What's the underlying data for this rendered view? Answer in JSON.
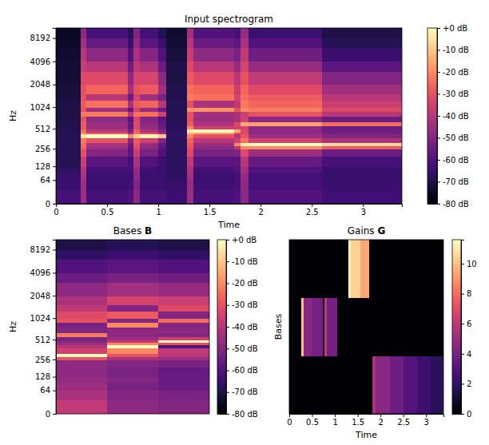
{
  "chart_data": [
    {
      "type": "heatmap",
      "title": "Input spectrogram",
      "x_label": "Time",
      "y_label": "Hz",
      "log": "y",
      "color": "magma",
      "xlim": [
        0,
        3.38
      ],
      "xticks": [
        0,
        0.5,
        1,
        1.5,
        2,
        2.5,
        3
      ],
      "ylim": [
        0,
        11025
      ],
      "yticks": [
        0,
        64,
        128,
        256,
        512,
        1024,
        2048,
        4096,
        8192
      ],
      "x_edges": [
        0,
        0.24,
        0.3,
        0.7,
        0.76,
        0.82,
        1.0,
        1.08,
        1.28,
        1.34,
        1.74,
        1.8,
        1.88,
        2.6,
        3.38
      ],
      "y_edges": [
        0,
        32,
        64,
        96,
        128,
        192,
        256,
        288,
        320,
        384,
        432,
        464,
        512,
        560,
        640,
        768,
        896,
        1024,
        1280,
        1536,
        2048,
        3072,
        4096,
        6144,
        8192,
        11025
      ],
      "cells": [
        [
          -62,
          -45,
          -62,
          -60,
          -48,
          -62,
          -62,
          -64,
          -45,
          -62,
          -60,
          -48,
          -60,
          -63
        ],
        [
          -64,
          -45,
          -64,
          -62,
          -50,
          -64,
          -64,
          -65,
          -46,
          -63,
          -62,
          -48,
          -62,
          -64
        ],
        [
          -65,
          -42,
          -64,
          -63,
          -48,
          -64,
          -65,
          -66,
          -44,
          -64,
          -62,
          -46,
          -62,
          -65
        ],
        [
          -66,
          -40,
          -62,
          -62,
          -46,
          -63,
          -65,
          -66,
          -42,
          -62,
          -60,
          -44,
          -60,
          -64
        ],
        [
          -68,
          -36,
          -58,
          -62,
          -42,
          -60,
          -64,
          -67,
          -38,
          -58,
          -58,
          -40,
          -56,
          -62
        ],
        [
          -68,
          -30,
          -50,
          -58,
          -36,
          -52,
          -60,
          -67,
          -32,
          -52,
          -50,
          -32,
          -45,
          -55
        ],
        [
          -68,
          -26,
          -45,
          -56,
          -32,
          -48,
          -58,
          -67,
          -30,
          -48,
          -40,
          -20,
          -20,
          -28
        ],
        [
          -68,
          -24,
          -42,
          -55,
          -30,
          -46,
          -56,
          -67,
          -28,
          -45,
          -20,
          -3,
          0,
          -6
        ],
        [
          -68,
          -22,
          -30,
          -50,
          -28,
          -35,
          -50,
          -67,
          -26,
          -40,
          -35,
          -24,
          -35,
          -42
        ],
        [
          -68,
          -5,
          0,
          -20,
          -8,
          -2,
          -10,
          -66,
          -20,
          -30,
          -40,
          -30,
          -45,
          -50
        ],
        [
          -68,
          -20,
          -28,
          -45,
          -24,
          -32,
          -45,
          -66,
          -12,
          -15,
          -30,
          -32,
          -48,
          -52
        ],
        [
          -68,
          -24,
          -40,
          -52,
          -28,
          -42,
          -50,
          -66,
          -4,
          -1,
          -14,
          -32,
          -48,
          -54
        ],
        [
          -69,
          -28,
          -45,
          -56,
          -32,
          -46,
          -55,
          -67,
          -20,
          -35,
          -35,
          -34,
          -48,
          -55
        ],
        [
          -69,
          -28,
          -45,
          -56,
          -32,
          -48,
          -56,
          -67,
          -28,
          -42,
          -32,
          -14,
          -16,
          -25
        ],
        [
          -70,
          -30,
          -48,
          -58,
          -34,
          -50,
          -58,
          -68,
          -30,
          -45,
          -42,
          -35,
          -48,
          -55
        ],
        [
          -70,
          -22,
          -22,
          -40,
          -24,
          -24,
          -35,
          -68,
          -30,
          -44,
          -42,
          -36,
          -30,
          -40
        ],
        [
          -70,
          -30,
          -44,
          -56,
          -34,
          -46,
          -55,
          -68,
          -18,
          -18,
          -30,
          -20,
          -22,
          -32
        ],
        [
          -70,
          -28,
          -24,
          -42,
          -28,
          -26,
          -40,
          -68,
          -30,
          -42,
          -38,
          -22,
          -26,
          -36
        ],
        [
          -71,
          -30,
          -40,
          -55,
          -34,
          -44,
          -52,
          -69,
          -22,
          -24,
          -34,
          -24,
          -28,
          -40
        ],
        [
          -71,
          -30,
          -26,
          -44,
          -30,
          -28,
          -44,
          -69,
          -24,
          -26,
          -36,
          -26,
          -32,
          -44
        ],
        [
          -72,
          -32,
          -32,
          -48,
          -34,
          -34,
          -48,
          -70,
          -28,
          -32,
          -40,
          -30,
          -38,
          -50
        ],
        [
          -72,
          -36,
          -40,
          -54,
          -38,
          -42,
          -55,
          -70,
          -32,
          -40,
          -46,
          -34,
          -46,
          -58
        ],
        [
          -73,
          -40,
          -48,
          -60,
          -42,
          -50,
          -60,
          -71,
          -36,
          -48,
          -52,
          -38,
          -54,
          -64
        ],
        [
          -74,
          -44,
          -56,
          -65,
          -46,
          -58,
          -65,
          -72,
          -40,
          -55,
          -58,
          -42,
          -60,
          -68
        ],
        [
          -75,
          -48,
          -62,
          -68,
          -50,
          -62,
          -68,
          -73,
          -44,
          -60,
          -62,
          -46,
          -64,
          -70
        ]
      ],
      "colorbar_range": [
        -80,
        0
      ],
      "colorbar_ticks": [
        {
          "value": 0,
          "label": "+0 dB"
        },
        {
          "value": -10,
          "label": "-10 dB"
        },
        {
          "value": -20,
          "label": "-20 dB"
        },
        {
          "value": -30,
          "label": "-30 dB"
        },
        {
          "value": -40,
          "label": "-40 dB"
        },
        {
          "value": -50,
          "label": "-50 dB"
        },
        {
          "value": -60,
          "label": "-60 dB"
        },
        {
          "value": -70,
          "label": "-70 dB"
        },
        {
          "value": -80,
          "label": "-80 dB"
        }
      ]
    },
    {
      "type": "heatmap",
      "title": "Bases B",
      "y_label": "Hz",
      "log": "y",
      "color": "magma",
      "tick_labels": "y",
      "categories": [
        null,
        null,
        null
      ],
      "ylim": [
        0,
        11025
      ],
      "yticks": [
        0,
        64,
        128,
        256,
        512,
        1024,
        2048,
        4096,
        8192
      ],
      "y_edges": [
        0,
        32,
        64,
        96,
        128,
        192,
        256,
        288,
        320,
        384,
        432,
        464,
        512,
        560,
        640,
        768,
        896,
        1024,
        1280,
        1536,
        2048,
        3072,
        4096,
        6144,
        8192,
        11025
      ],
      "cells": [
        [
          -38,
          -48,
          -50
        ],
        [
          -42,
          -50,
          -52
        ],
        [
          -45,
          -52,
          -55
        ],
        [
          -46,
          -50,
          -55
        ],
        [
          -48,
          -52,
          -56
        ],
        [
          -48,
          -50,
          -52
        ],
        [
          -30,
          -42,
          -45
        ],
        [
          0,
          -30,
          -40
        ],
        [
          -35,
          -20,
          -38
        ],
        [
          -40,
          0,
          -60
        ],
        [
          -45,
          -20,
          -30
        ],
        [
          -50,
          -38,
          0
        ],
        [
          -52,
          -45,
          -35
        ],
        [
          -22,
          -48,
          -50
        ],
        [
          -50,
          -48,
          -48
        ],
        [
          -52,
          -20,
          -50
        ],
        [
          -30,
          -50,
          -25
        ],
        [
          -32,
          -28,
          -50
        ],
        [
          -38,
          -50,
          -32
        ],
        [
          -42,
          -34,
          -36
        ],
        [
          -48,
          -44,
          -46
        ],
        [
          -55,
          -52,
          -54
        ],
        [
          -60,
          -58,
          -60
        ],
        [
          -66,
          -64,
          -66
        ],
        [
          -70,
          -68,
          -70
        ]
      ],
      "colorbar_range": [
        -80,
        0
      ],
      "colorbar_ticks": [
        {
          "value": 0,
          "label": "+0 dB"
        },
        {
          "value": -10,
          "label": "-10 dB"
        },
        {
          "value": -20,
          "label": "-20 dB"
        },
        {
          "value": -30,
          "label": "-30 dB"
        },
        {
          "value": -40,
          "label": "-40 dB"
        },
        {
          "value": -50,
          "label": "-50 dB"
        },
        {
          "value": -60,
          "label": "-60 dB"
        },
        {
          "value": -70,
          "label": "-70 dB"
        },
        {
          "value": -80,
          "label": "-80 dB"
        }
      ]
    },
    {
      "type": "heatmap",
      "title": "Gains G",
      "x_label": "Time",
      "y_label": "Bases",
      "color": "magma",
      "tick_labels": "x",
      "xlim": [
        0,
        3.38
      ],
      "xticks": [
        0,
        0.5,
        1,
        1.5,
        2,
        2.5,
        3
      ],
      "x_edges": [
        0,
        0.27,
        0.31,
        0.5,
        0.74,
        0.77,
        0.82,
        1.05,
        1.3,
        1.34,
        1.55,
        1.75,
        1.82,
        1.9,
        2.2,
        2.5,
        2.8,
        3.1,
        3.38
      ],
      "y_categories": [
        null,
        null,
        null
      ],
      "cells": [
        [
          0,
          0,
          0,
          0,
          0,
          0,
          0,
          0,
          0,
          0,
          0,
          0,
          5.5,
          4.5,
          3.8,
          3,
          2.4,
          1.8
        ],
        [
          0,
          10,
          4.5,
          4,
          0.5,
          6,
          4,
          0,
          0,
          0,
          0,
          0,
          0,
          0,
          0,
          0,
          0,
          0
        ],
        [
          0,
          0,
          0,
          0,
          0,
          0,
          0,
          0,
          11.5,
          10.5,
          9.5,
          0,
          0,
          0,
          0,
          0,
          0,
          0
        ]
      ],
      "colorbar_range": [
        0,
        11.6
      ],
      "colorbar_ticks": [
        0,
        2,
        4,
        6,
        8,
        10
      ]
    }
  ]
}
